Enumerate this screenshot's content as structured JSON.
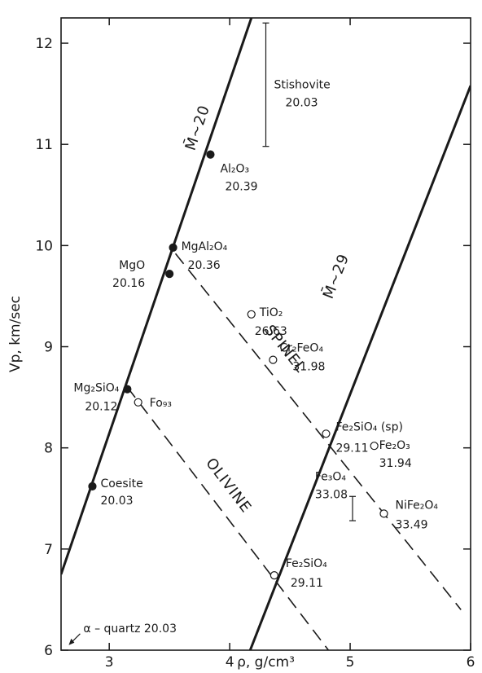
{
  "chart_data": {
    "type": "scatter",
    "xlabel": "ρ, g/cm³",
    "ylabel": "Vp, km/sec",
    "xlim": [
      2.6,
      6.0
    ],
    "ylim": [
      6.0,
      12.25
    ],
    "xticks": [
      3,
      4,
      5,
      6
    ],
    "yticks": [
      6,
      7,
      8,
      9,
      10,
      11,
      12
    ],
    "grid": false,
    "points": [
      {
        "id": "al2o3",
        "label": "Al₂O₃",
        "mmw": "20.39",
        "x": 3.84,
        "y": 10.9,
        "filled": true
      },
      {
        "id": "mgal2o4",
        "label": "MgAl₂O₄",
        "mmw": "20.36",
        "x": 3.53,
        "y": 9.98,
        "filled": true
      },
      {
        "id": "mgo",
        "label": "MgO",
        "mmw": "20.16",
        "x": 3.5,
        "y": 9.72,
        "filled": true
      },
      {
        "id": "mg2sio4",
        "label": "Mg₂SiO₄",
        "mmw": "20.12",
        "x": 3.15,
        "y": 8.58,
        "filled": true
      },
      {
        "id": "coesite",
        "label": "Coesite",
        "mmw": "20.03",
        "x": 2.86,
        "y": 7.62,
        "filled": true
      },
      {
        "id": "fo93",
        "label": "Fo₉₃",
        "mmw": "",
        "x": 3.24,
        "y": 8.45,
        "filled": false
      },
      {
        "id": "tio2",
        "label": "TiO₂",
        "mmw": "26.63",
        "x": 4.18,
        "y": 9.32,
        "filled": false
      },
      {
        "id": "cr2feo4",
        "label": "Cr₂FeO₄",
        "mmw": "31.98",
        "x": 4.36,
        "y": 8.87,
        "filled": false
      },
      {
        "id": "fe2sio4sp",
        "label": "Fe₂SiO₄ (sp)",
        "mmw": "29.11",
        "x": 4.8,
        "y": 8.14,
        "filled": false
      },
      {
        "id": "fe2o3",
        "label": "Fe₂O₃",
        "mmw": "31.94",
        "x": 5.2,
        "y": 8.02,
        "filled": false
      },
      {
        "id": "nife2o4",
        "label": "NiFe₂O₄",
        "mmw": "33.49",
        "x": 5.28,
        "y": 7.35,
        "filled": false
      },
      {
        "id": "fe2sio4",
        "label": "Fe₂SiO₄",
        "mmw": "29.11",
        "x": 4.37,
        "y": 6.74,
        "filled": false
      }
    ],
    "error_bars": [
      {
        "id": "stishovite",
        "label": "Stishovite",
        "mmw": "20.03",
        "x": 4.3,
        "y_low": 10.98,
        "y_high": 12.2
      },
      {
        "id": "fe3o4",
        "label": "Fe₃O₄",
        "mmw": "33.08",
        "x": 5.02,
        "y_low": 7.28,
        "y_high": 7.52
      }
    ],
    "annotation_quartz": {
      "label": "α – quartz 20.03",
      "x": 2.65,
      "y": 6.05
    },
    "trend_lines": [
      {
        "id": "m20",
        "label": "M̄~20",
        "x": [
          2.6,
          4.18
        ],
        "y": [
          6.75,
          12.25
        ]
      },
      {
        "id": "m29",
        "label": "M̄~29",
        "x": [
          4.17,
          6.0
        ],
        "y": [
          6.0,
          11.58
        ]
      }
    ],
    "dashed_lines": [
      {
        "id": "spinel",
        "label": "SPINEL",
        "x": [
          3.55,
          5.92
        ],
        "y": [
          9.92,
          6.4
        ]
      },
      {
        "id": "olivine",
        "label": "OLIVINE",
        "x": [
          3.15,
          4.82
        ],
        "y": [
          8.6,
          6.0
        ]
      }
    ]
  }
}
